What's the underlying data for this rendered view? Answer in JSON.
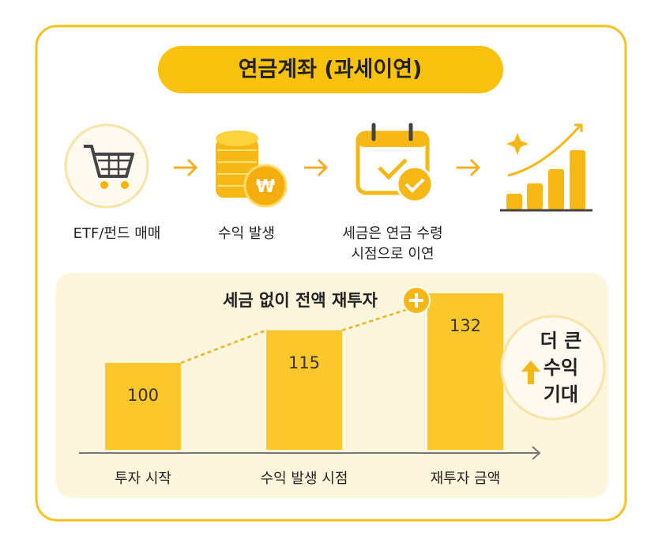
{
  "header": {
    "title": "연금계좌 (과세이연)"
  },
  "steps": [
    {
      "label": [
        "ETF/펀드 매매"
      ]
    },
    {
      "label": [
        "수익 발생"
      ]
    },
    {
      "label": [
        "세금은 연금 수령",
        "시점으로 이연"
      ]
    },
    {
      "label": []
    }
  ],
  "chart_data": {
    "type": "bar",
    "title": "세금 없이 전액 재투자",
    "categories": [
      "투자 시작",
      "수익 발생 시점",
      "재투자 금액"
    ],
    "values": [
      100,
      115,
      132
    ],
    "color": "#fbc72a",
    "ylim": [
      60,
      140
    ],
    "annotation": [
      "더 큰",
      "수익",
      "기대"
    ]
  }
}
